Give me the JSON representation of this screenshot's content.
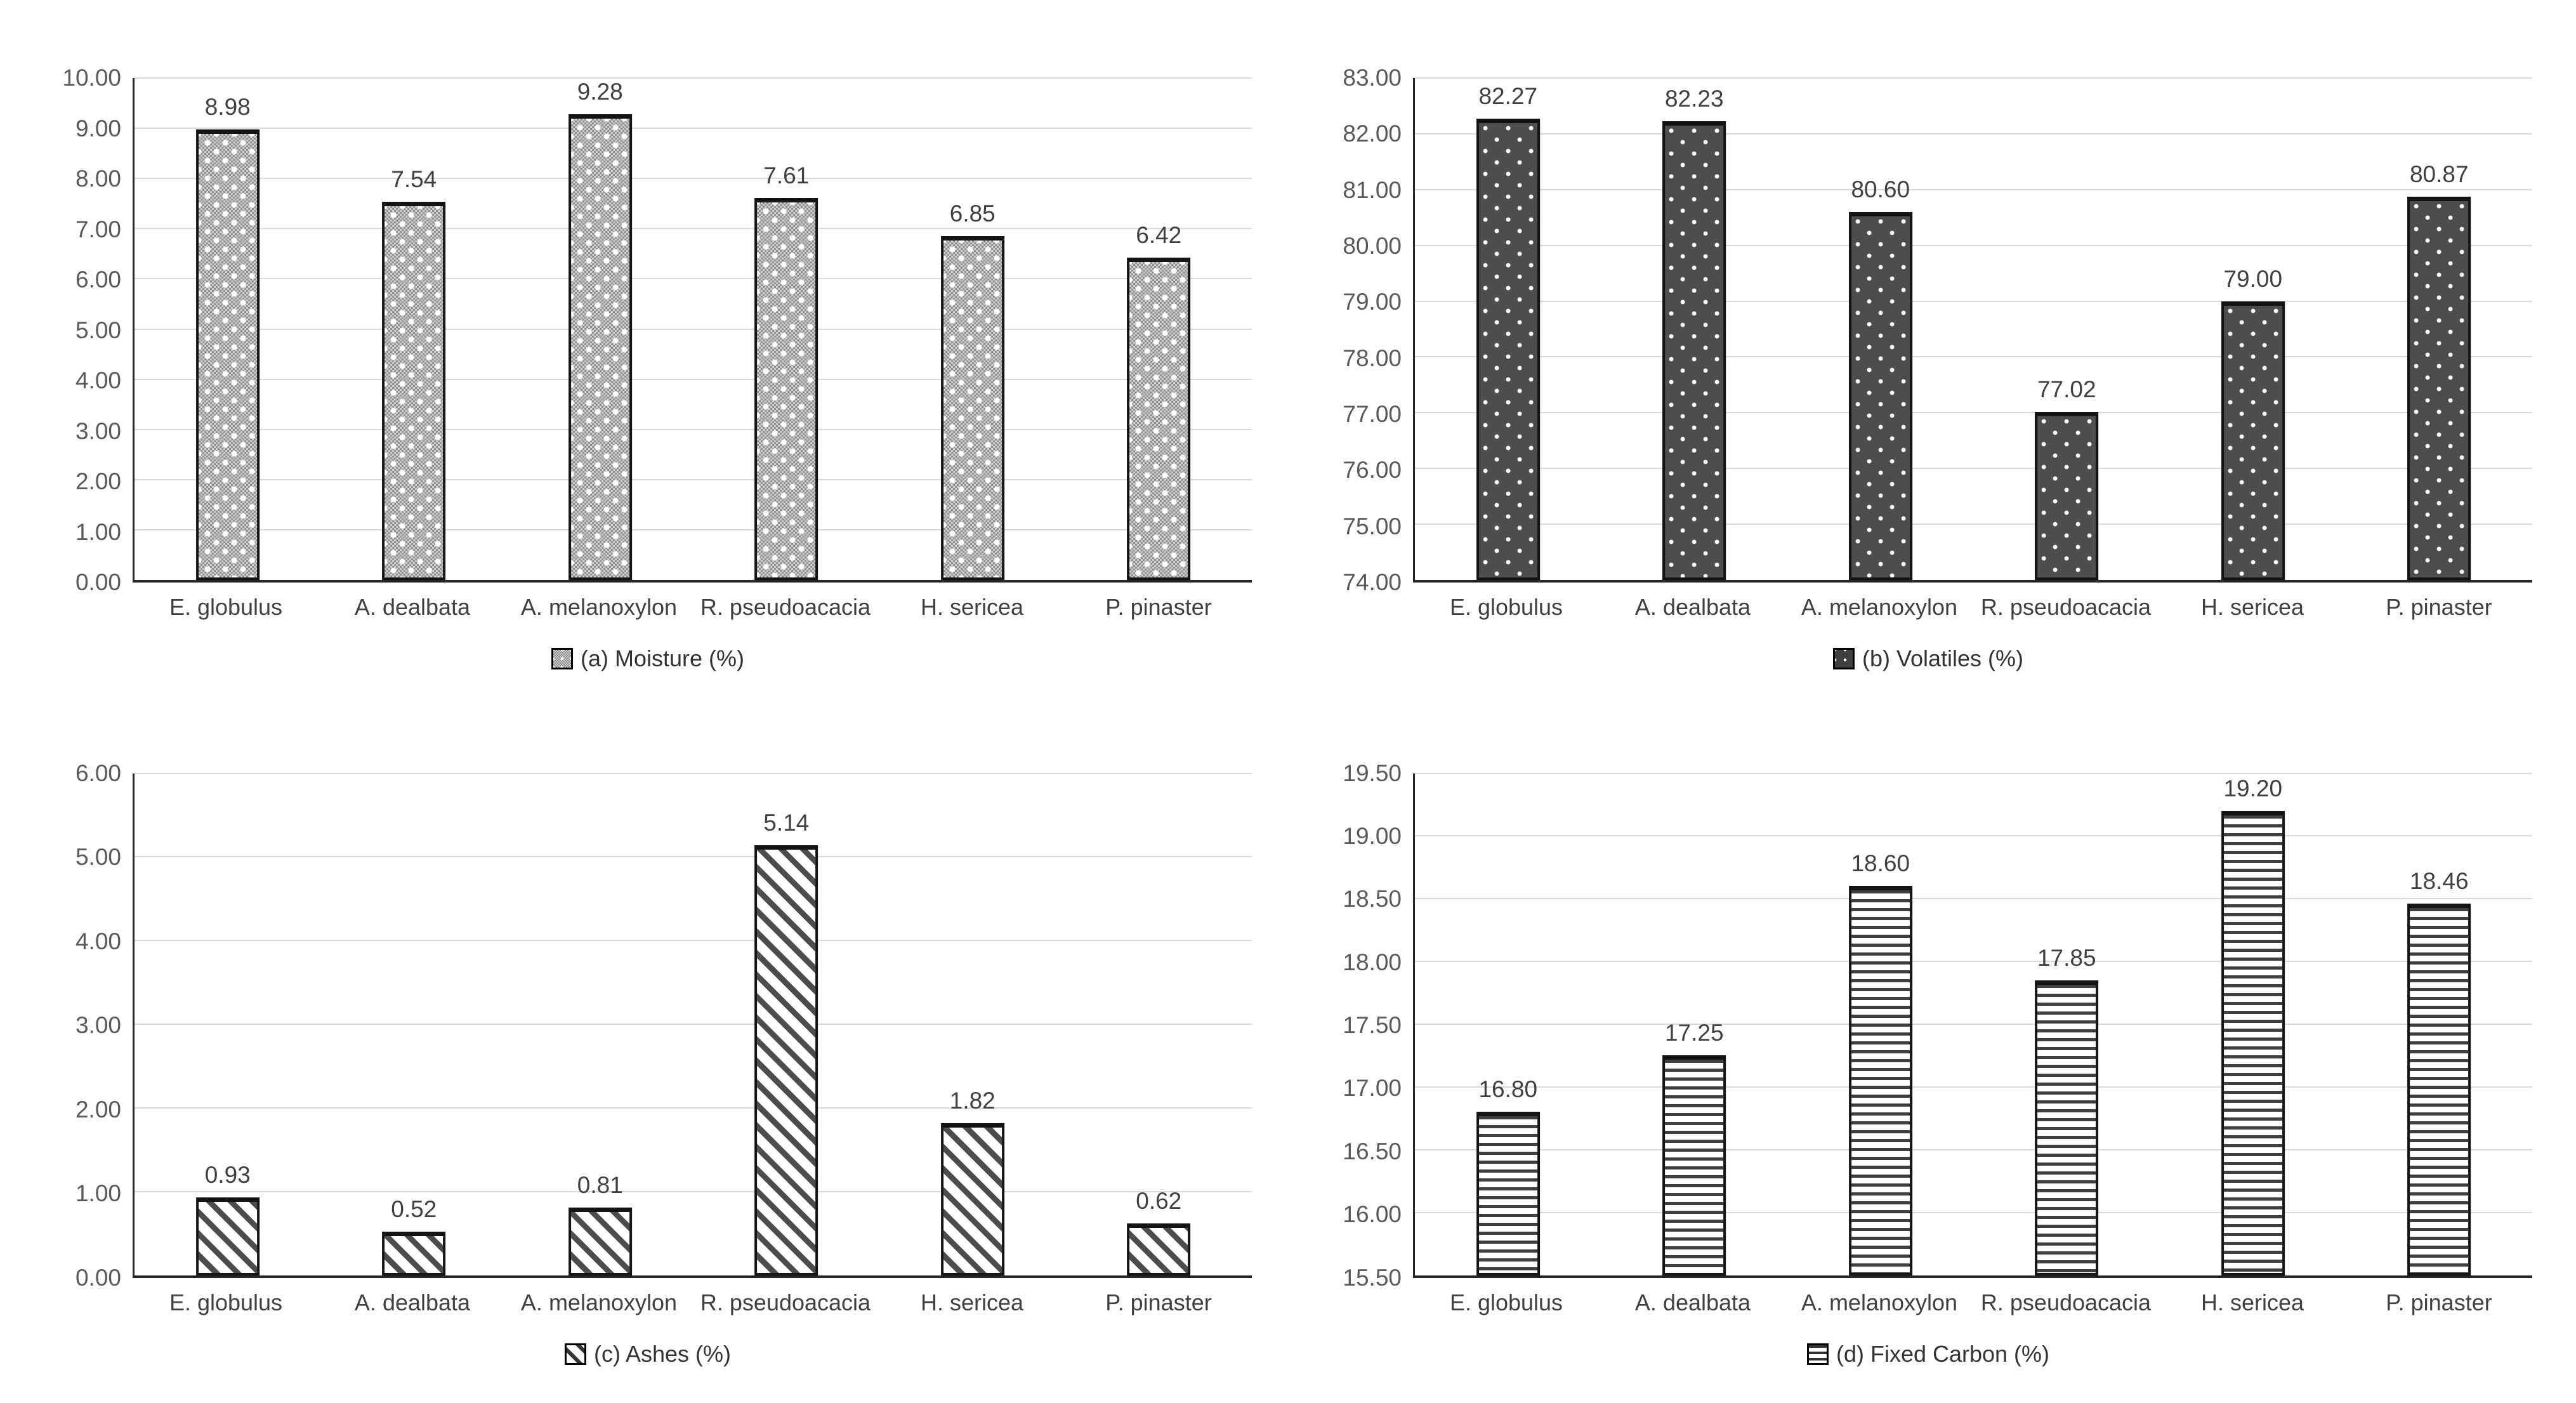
{
  "figure": {
    "background": "#ffffff",
    "layout": "2x2-grid-of-bar-charts"
  },
  "style": {
    "gridline_color": "#d9d9d9",
    "axis_color": "#262626",
    "tick_text_color": "#595959",
    "label_text_color": "#404040",
    "bar_border_color": "#141414"
  },
  "chart_data": [
    {
      "type": "bar",
      "panel": "a",
      "title": "(a) Moisture (%)",
      "legend_position": "bottom",
      "categories": [
        "E. globulus",
        "A. dealbata",
        "A. melanoxylon",
        "R. pseudoacacia",
        "H. sericea",
        "P. pinaster"
      ],
      "values": [
        8.98,
        7.54,
        9.28,
        7.61,
        6.85,
        6.42
      ],
      "value_labels": [
        "8.98",
        "7.54",
        "9.28",
        "7.61",
        "6.85",
        "6.42"
      ],
      "xlabel": "",
      "ylabel": "",
      "ylim": [
        0,
        10
      ],
      "ystep": 1,
      "yticks": [
        "0.00",
        "1.00",
        "2.00",
        "3.00",
        "4.00",
        "5.00",
        "6.00",
        "7.00",
        "8.00",
        "9.00",
        "10.00"
      ],
      "grid": true,
      "fill_style": "checker-dots",
      "colors": {
        "fill_base": "#cfcfcf",
        "pattern": "#8f8f8f",
        "dots": "#ffffff"
      }
    },
    {
      "type": "bar",
      "panel": "b",
      "title": "(b) Volatiles (%)",
      "legend_position": "bottom",
      "categories": [
        "E. globulus",
        "A. dealbata",
        "A. melanoxylon",
        "R. pseudoacacia",
        "H. sericea",
        "P. pinaster"
      ],
      "values": [
        82.27,
        82.23,
        80.6,
        77.02,
        79.0,
        80.87
      ],
      "value_labels": [
        "82.27",
        "82.23",
        "80.60",
        "77.02",
        "79.00",
        "80.87"
      ],
      "xlabel": "",
      "ylabel": "",
      "ylim": [
        74,
        83
      ],
      "ystep": 1,
      "yticks": [
        "74.00",
        "75.00",
        "76.00",
        "77.00",
        "78.00",
        "79.00",
        "80.00",
        "81.00",
        "82.00",
        "83.00"
      ],
      "grid": true,
      "fill_style": "dark-dots",
      "colors": {
        "fill_base": "#4d4d4d",
        "dots": "#ffffff"
      }
    },
    {
      "type": "bar",
      "panel": "c",
      "title": "(c) Ashes (%)",
      "legend_position": "bottom",
      "categories": [
        "E. globulus",
        "A. dealbata",
        "A. melanoxylon",
        "R. pseudoacacia",
        "H. sericea",
        "P. pinaster"
      ],
      "values": [
        0.93,
        0.52,
        0.81,
        5.14,
        1.82,
        0.62
      ],
      "value_labels": [
        "0.93",
        "0.52",
        "0.81",
        "5.14",
        "1.82",
        "0.62"
      ],
      "xlabel": "",
      "ylabel": "",
      "ylim": [
        0,
        6
      ],
      "ystep": 1,
      "yticks": [
        "0.00",
        "1.00",
        "2.00",
        "3.00",
        "4.00",
        "5.00",
        "6.00"
      ],
      "grid": true,
      "fill_style": "diagonal-stripes",
      "colors": {
        "fill_base": "#ffffff",
        "pattern": "#4d4d4d"
      }
    },
    {
      "type": "bar",
      "panel": "d",
      "title": "(d) Fixed Carbon (%)",
      "legend_position": "bottom",
      "categories": [
        "E. globulus",
        "A. dealbata",
        "A. melanoxylon",
        "R. pseudoacacia",
        "H. sericea",
        "P. pinaster"
      ],
      "values": [
        16.8,
        17.25,
        18.6,
        17.85,
        19.2,
        18.46
      ],
      "value_labels": [
        "16.80",
        "17.25",
        "18.60",
        "17.85",
        "19.20",
        "18.46"
      ],
      "xlabel": "",
      "ylabel": "",
      "ylim": [
        15.5,
        19.5
      ],
      "ystep": 0.5,
      "yticks": [
        "15.50",
        "16.00",
        "16.50",
        "17.00",
        "17.50",
        "18.00",
        "18.50",
        "19.00",
        "19.50"
      ],
      "grid": true,
      "fill_style": "horizontal-stripes",
      "colors": {
        "fill_base": "#ffffff",
        "pattern": "#3f3f3f"
      }
    }
  ]
}
